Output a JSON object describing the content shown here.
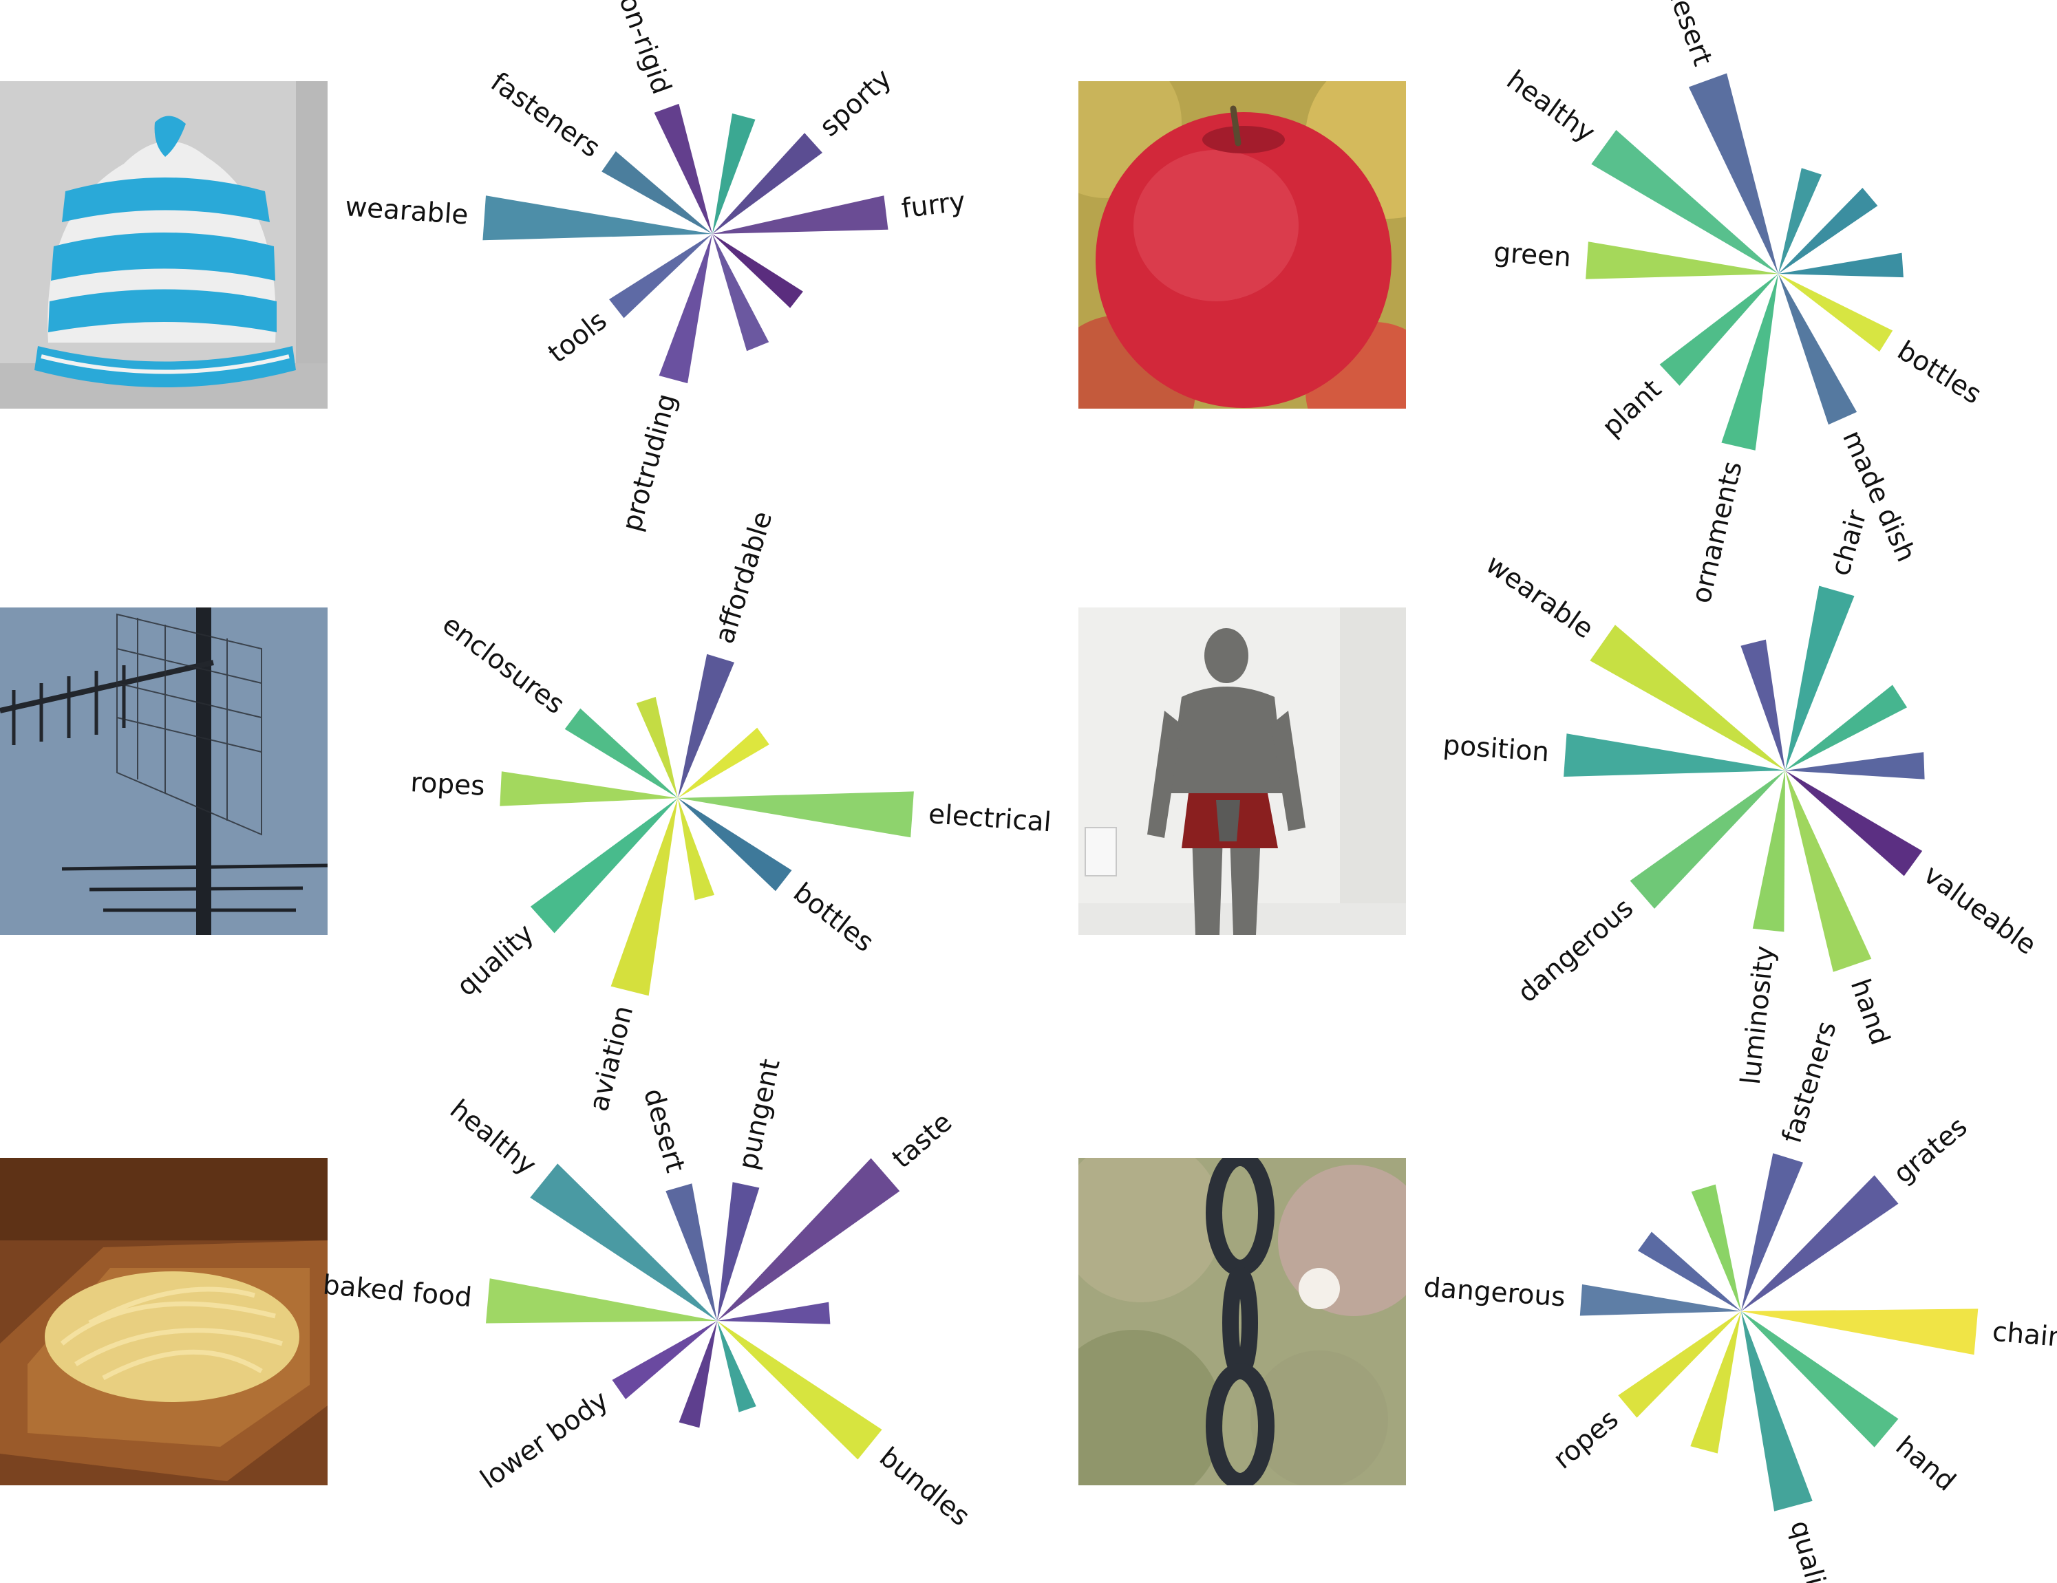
{
  "figure": {
    "images": [
      {
        "subject": "knitted hat"
      },
      {
        "subject": "apple"
      },
      {
        "subject": "antenna"
      },
      {
        "subject": "suit of armor"
      },
      {
        "subject": "pasta"
      },
      {
        "subject": "chain"
      }
    ]
  },
  "chart_data": [
    {
      "type": "radial-bar",
      "panel": "hat",
      "bars": [
        {
          "angle": 110,
          "length": 0.55,
          "color": "#633f8d",
          "label": "non-rigid"
        },
        {
          "angle": 75,
          "length": 0.5,
          "color": "#3ba892",
          "label": null
        },
        {
          "angle": 42,
          "length": 0.56,
          "color": "#5b4d92",
          "label": "sporty"
        },
        {
          "angle": 7,
          "length": 0.72,
          "color": "#6a4c94",
          "label": "furry"
        },
        {
          "angle": -38,
          "length": 0.44,
          "color": "#5a2d7e",
          "label": null
        },
        {
          "angle": -68,
          "length": 0.5,
          "color": "#6b58a0",
          "label": null
        },
        {
          "angle": -105,
          "length": 0.62,
          "color": "#6a51a0",
          "label": "protruding"
        },
        {
          "angle": -142,
          "length": 0.5,
          "color": "#5e6aa5",
          "label": "tools"
        },
        {
          "angle": 176,
          "length": 0.94,
          "color": "#4d8ea8",
          "label": "wearable"
        },
        {
          "angle": 145,
          "length": 0.52,
          "color": "#4b7e9d",
          "label": "fasteners"
        }
      ]
    },
    {
      "type": "radial-bar",
      "panel": "apple",
      "bars": [
        {
          "angle": 110,
          "length": 0.86,
          "color": "#5a6fa0",
          "label": "desert"
        },
        {
          "angle": 72,
          "length": 0.45,
          "color": "#3f9aa0",
          "label": null
        },
        {
          "angle": 40,
          "length": 0.5,
          "color": "#3b8ea0",
          "label": null
        },
        {
          "angle": 4,
          "length": 0.52,
          "color": "#3a8fa2",
          "label": null
        },
        {
          "angle": -32,
          "length": 0.53,
          "color": "#d7e542",
          "label": "bottles"
        },
        {
          "angle": -66,
          "length": 0.66,
          "color": "#5579a0",
          "label": "made dish"
        },
        {
          "angle": -103,
          "length": 0.74,
          "color": "#4cbd8a",
          "label": "ornaments"
        },
        {
          "angle": -137,
          "length": 0.62,
          "color": "#4fbd89",
          "label": "plant"
        },
        {
          "angle": 176,
          "length": 0.8,
          "color": "#a5d85a",
          "label": "green"
        },
        {
          "angle": 144,
          "length": 0.9,
          "color": "#58c08d",
          "label": "healthy"
        }
      ]
    },
    {
      "type": "radial-bar",
      "panel": "antenna",
      "bars": [
        {
          "angle": 73,
          "length": 0.61,
          "color": "#5a5898",
          "label": "affordable"
        },
        {
          "angle": 108,
          "length": 0.43,
          "color": "#c4dc44",
          "label": null
        },
        {
          "angle": 36,
          "length": 0.44,
          "color": "#dde63e",
          "label": null
        },
        {
          "angle": -4,
          "length": 0.98,
          "color": "#8ed36d",
          "label": "electrical"
        },
        {
          "angle": -38,
          "length": 0.56,
          "color": "#3e799a",
          "label": "bottles"
        },
        {
          "angle": -75,
          "length": 0.43,
          "color": "#d3e23f",
          "label": null
        },
        {
          "angle": -104,
          "length": 0.83,
          "color": "#d5e03d",
          "label": "aviation"
        },
        {
          "angle": -138,
          "length": 0.76,
          "color": "#48bb8c",
          "label": "quality"
        },
        {
          "angle": 177,
          "length": 0.74,
          "color": "#a3d85e",
          "label": "ropes"
        },
        {
          "angle": 143,
          "length": 0.55,
          "color": "#50bd88",
          "label": "enclosures"
        }
      ]
    },
    {
      "type": "radial-bar",
      "panel": "armor",
      "bars": [
        {
          "angle": 74,
          "length": 0.78,
          "color": "#3fa89a",
          "label": "chair"
        },
        {
          "angle": 104,
          "length": 0.55,
          "color": "#5c5e9e",
          "label": null
        },
        {
          "angle": 33,
          "length": 0.57,
          "color": "#46b58f",
          "label": null
        },
        {
          "angle": 2,
          "length": 0.58,
          "color": "#5a66a0",
          "label": null
        },
        {
          "angle": -36,
          "length": 0.66,
          "color": "#5b2f82",
          "label": "valueable"
        },
        {
          "angle": -71,
          "length": 0.86,
          "color": "#9fd65e",
          "label": "hand"
        },
        {
          "angle": -96,
          "length": 0.67,
          "color": "#8fd364",
          "label": "luminosity"
        },
        {
          "angle": -139,
          "length": 0.79,
          "color": "#6fc877",
          "label": "dangerous"
        },
        {
          "angle": 176,
          "length": 0.92,
          "color": "#43aa9c",
          "label": "position"
        },
        {
          "angle": 145,
          "length": 0.93,
          "color": "#c7e043",
          "label": "wearable"
        }
      ]
    },
    {
      "type": "radial-bar",
      "panel": "pasta",
      "bars": [
        {
          "angle": 106,
          "length": 0.58,
          "color": "#5b689f",
          "label": "desert"
        },
        {
          "angle": 78,
          "length": 0.58,
          "color": "#5c519a",
          "label": "pungent"
        },
        {
          "angle": 41,
          "length": 0.93,
          "color": "#6a4a92",
          "label": "taste"
        },
        {
          "angle": 4,
          "length": 0.47,
          "color": "#6650a0",
          "label": null
        },
        {
          "angle": -39,
          "length": 0.82,
          "color": "#d7e43f",
          "label": "bundles"
        },
        {
          "angle": -71,
          "length": 0.39,
          "color": "#3fa499",
          "label": null
        },
        {
          "angle": -105,
          "length": 0.45,
          "color": "#5e3f8e",
          "label": null
        },
        {
          "angle": -145,
          "length": 0.5,
          "color": "#6a49a0",
          "label": "lower body"
        },
        {
          "angle": 175,
          "length": 0.96,
          "color": "#9fd765",
          "label": "baked food"
        },
        {
          "angle": 141,
          "length": 0.93,
          "color": "#4a9aa3",
          "label": "healthy"
        }
      ]
    },
    {
      "type": "radial-bar",
      "panel": "chain",
      "bars": [
        {
          "angle": 73,
          "length": 0.66,
          "color": "#5b62a0",
          "label": "fasteners"
        },
        {
          "angle": 107,
          "length": 0.53,
          "color": "#8bd366",
          "label": null
        },
        {
          "angle": 40,
          "length": 0.78,
          "color": "#5d5c9e",
          "label": "grates"
        },
        {
          "angle": -5,
          "length": 0.97,
          "color": "#f0e446",
          "label": "chained"
        },
        {
          "angle": -40,
          "length": 0.78,
          "color": "#54bf88",
          "label": "hand"
        },
        {
          "angle": -75,
          "length": 0.83,
          "color": "#44a49a",
          "label": "quality"
        },
        {
          "angle": -105,
          "length": 0.59,
          "color": "#d8e23e",
          "label": null
        },
        {
          "angle": -140,
          "length": 0.61,
          "color": "#dce23e",
          "label": "ropes"
        },
        {
          "angle": 176,
          "length": 0.66,
          "color": "#5e7ea6",
          "label": "dangerous"
        },
        {
          "angle": 144,
          "length": 0.49,
          "color": "#5a6aa3",
          "label": null
        }
      ]
    }
  ]
}
